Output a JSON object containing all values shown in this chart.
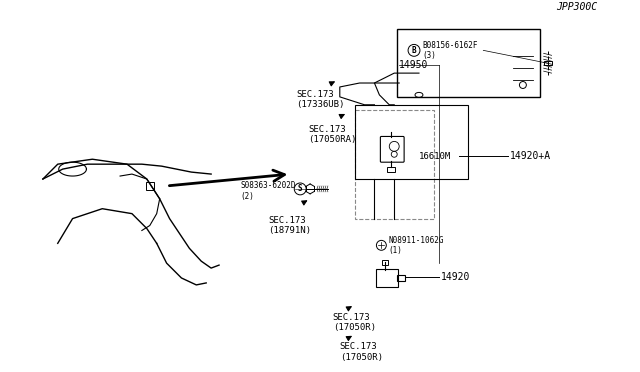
{
  "bg_color": "#ffffff",
  "line_color": "#000000",
  "dashed_color": "#888888",
  "diagram_id": "JPP300C",
  "labels": {
    "sec173_17050R_1": "SEC.173\n(17050R)",
    "sec173_17050R_2": "SEC.173\n(17050R)",
    "sec173_18791N": "SEC.173\n(18791N)",
    "sec173_17050RA": "SEC.173\n(17050RA)",
    "sec173_17336UB": "SEC.173\n(17336UB)",
    "part_14920": "14920",
    "part_14920A": "14920+A",
    "part_16610M": "16610M",
    "part_14950": "14950",
    "bolt_N": "N08911-1062G\n(1)",
    "bolt_S": "S08363-6202D\n(2)",
    "bolt_B": "B08156-6162F\n(3)"
  },
  "font_size_label": 6.5,
  "font_size_part": 7,
  "font_size_id": 7
}
